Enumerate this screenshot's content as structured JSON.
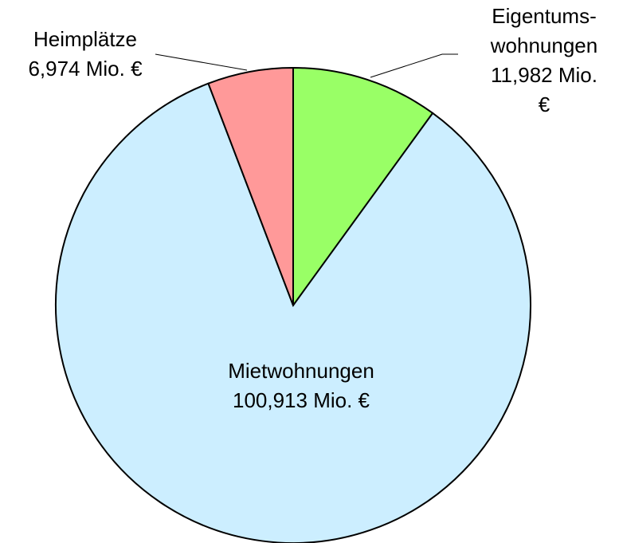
{
  "chart_data": {
    "type": "pie",
    "categories": [
      "Eigentums-\nwohnungen",
      "Mietwohnungen",
      "Heimplätze"
    ],
    "values": [
      11.982,
      100.913,
      6.974
    ],
    "value_labels": [
      "11,982 Mio. €",
      "100,913 Mio. €",
      "6,974 Mio. €"
    ],
    "colors": [
      "#99ff66",
      "#cceeff",
      "#ff9999"
    ]
  }
}
